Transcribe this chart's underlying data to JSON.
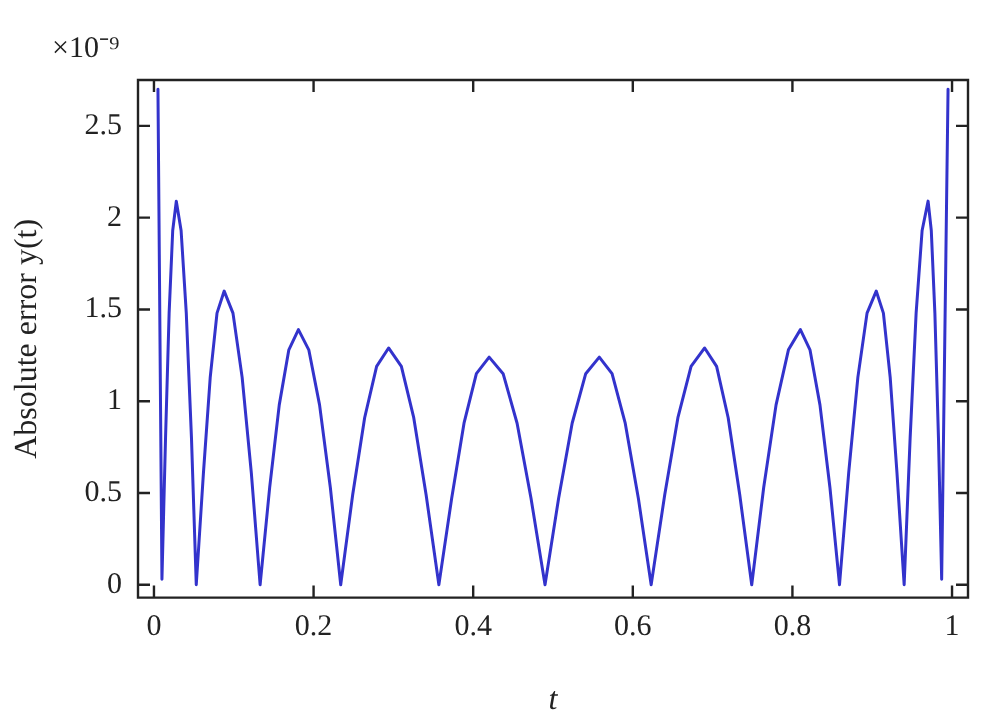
{
  "chart_data": {
    "type": "line",
    "xlabel": "t",
    "ylabel": "Absolute error y(t)",
    "annotations": [
      "×10⁻⁹"
    ],
    "xlim": [
      -0.02,
      1.02
    ],
    "ylim": [
      -0.07,
      2.75
    ],
    "xticks": [
      0,
      0.2,
      0.4,
      0.6,
      0.8,
      1
    ],
    "yticks": [
      0,
      0.5,
      1,
      1.5,
      2,
      2.5
    ],
    "grid": false,
    "legend": false,
    "marker": "none",
    "line_style": "solid",
    "series": [
      {
        "color": "#3333cc",
        "x": [
          0.005,
          0.01,
          0.0145,
          0.019,
          0.0235,
          0.028,
          0.034,
          0.0405,
          0.047,
          0.053,
          0.062,
          0.0705,
          0.079,
          0.088,
          0.099,
          0.1105,
          0.122,
          0.133,
          0.145,
          0.157,
          0.169,
          0.181,
          0.194,
          0.2075,
          0.221,
          0.234,
          0.249,
          0.264,
          0.279,
          0.294,
          0.31,
          0.3255,
          0.341,
          0.357,
          0.373,
          0.3885,
          0.404,
          0.42,
          0.4375,
          0.455,
          0.4725,
          0.49,
          0.507,
          0.524,
          0.541,
          0.558,
          0.574,
          0.5905,
          0.607,
          0.623,
          0.64,
          0.6565,
          0.673,
          0.69,
          0.705,
          0.7195,
          0.734,
          0.749,
          0.764,
          0.7795,
          0.795,
          0.81,
          0.822,
          0.8345,
          0.847,
          0.859,
          0.8705,
          0.882,
          0.8935,
          0.905,
          0.914,
          0.9225,
          0.931,
          0.94,
          0.9475,
          0.955,
          0.9625,
          0.97,
          0.974,
          0.9785,
          0.983,
          0.987,
          0.995
        ],
        "values": [
          2.7,
          0.03,
          0.8,
          1.48,
          1.93,
          2.09,
          1.93,
          1.48,
          0.8,
          0,
          0.61,
          1.13,
          1.48,
          1.6,
          1.48,
          1.13,
          0.61,
          0,
          0.53,
          0.98,
          1.28,
          1.39,
          1.28,
          0.98,
          0.53,
          0,
          0.49,
          0.91,
          1.19,
          1.29,
          1.19,
          0.91,
          0.49,
          0,
          0.47,
          0.88,
          1.15,
          1.24,
          1.15,
          0.88,
          0.47,
          0,
          0.47,
          0.88,
          1.15,
          1.24,
          1.15,
          0.88,
          0.47,
          0,
          0.49,
          0.91,
          1.19,
          1.29,
          1.19,
          0.91,
          0.49,
          0,
          0.53,
          0.98,
          1.28,
          1.39,
          1.28,
          0.98,
          0.53,
          0,
          0.61,
          1.13,
          1.48,
          1.6,
          1.48,
          1.13,
          0.61,
          0,
          0.8,
          1.48,
          1.93,
          2.09,
          1.93,
          1.48,
          0.8,
          0.03,
          2.7
        ]
      }
    ]
  }
}
